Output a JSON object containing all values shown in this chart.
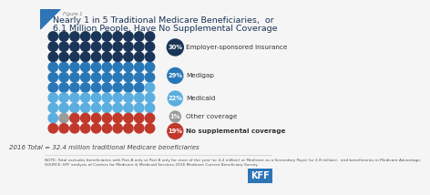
{
  "title_line1": "Nearly 1 in 5 Traditional Medicare Beneficiaries,  or",
  "title_line2": "6.1 Million People, Have No Supplemental Coverage",
  "figure_label": "Figure 1",
  "categories": [
    {
      "label": "Employer-sponsored insurance",
      "pct": 30,
      "color": "#1a3558",
      "bold": false
    },
    {
      "label": "Medigap",
      "pct": 29,
      "color": "#2878b8",
      "bold": false
    },
    {
      "label": "Medicaid",
      "pct": 22,
      "color": "#5aaee0",
      "bold": false
    },
    {
      "label": "Other coverage",
      "pct": 1,
      "color": "#9b9b9b",
      "bold": false
    },
    {
      "label": "No supplemental coverage",
      "pct": 19,
      "color": "#c0392b",
      "bold": true
    }
  ],
  "total_dots": 100,
  "grid_cols": 10,
  "grid_rows": 10,
  "footnote": "2016 Total = 32.4 million traditional Medicare beneficiaries",
  "background_color": "#f5f5f5",
  "title_color": "#1a3558",
  "note_text": "NOTE: Total excludes beneficiaries with Part A only or Part B only for most of the year (or 4.4 million) or Medicare as a Secondary Payer (or 2.8 million),  and beneficiaries in Medicare Advantage.\nSOURCE: KFF analysis of Centers for Medicare & Medicaid Services 2016 Medicare Current Beneficiary Survey."
}
